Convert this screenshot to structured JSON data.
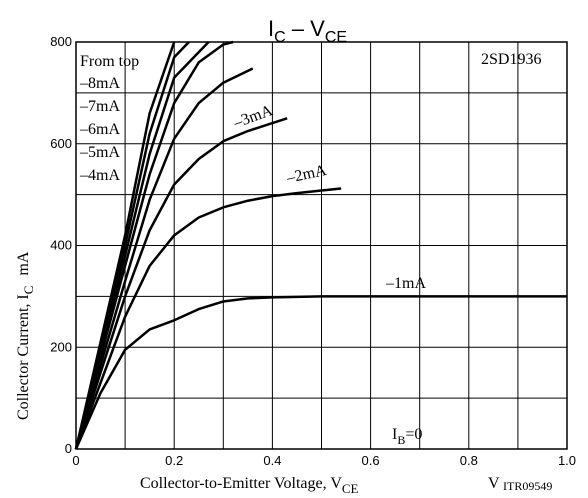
{
  "chart_data": {
    "type": "line",
    "title_parts": [
      "I",
      "C",
      " – V",
      "CE"
    ],
    "xlabel_parts": [
      "Collector-to-Emitter Voltage, V",
      "CE"
    ],
    "x_unit": "V",
    "code": "ITR09549",
    "ylabel_parts": [
      "Collector Current, I",
      "C",
      "mA"
    ],
    "device": "2SD1936",
    "legend_note": "From top",
    "zero_label_parts": [
      "I",
      "B",
      "=0"
    ],
    "xlim": [
      0,
      1
    ],
    "ylim": [
      0,
      800
    ],
    "xticks": [
      0,
      0.2,
      0.4,
      0.6,
      0.8,
      {
        "value": 1,
        "label": "1.0"
      }
    ],
    "xminor": [
      0.1,
      0.3,
      0.5,
      0.7,
      0.9
    ],
    "yticks": [
      0,
      200,
      400,
      600,
      800
    ],
    "yminor": [
      100,
      300,
      500,
      700
    ],
    "grid": true,
    "color": "#000000",
    "series": [
      {
        "name": "–1mA",
        "x": [
          0,
          0.05,
          0.1,
          0.15,
          0.2,
          0.25,
          0.3,
          0.35,
          0.4,
          0.5,
          0.6,
          0.7,
          0.8,
          0.9,
          1.0
        ],
        "values": [
          0,
          110,
          195,
          235,
          253,
          275,
          290,
          296,
          298,
          300,
          300,
          300,
          300,
          300,
          300
        ]
      },
      {
        "name": "–2mA",
        "x": [
          0,
          0.05,
          0.1,
          0.15,
          0.2,
          0.25,
          0.3,
          0.35,
          0.4,
          0.45,
          0.5,
          0.54
        ],
        "values": [
          0,
          130,
          260,
          360,
          420,
          455,
          475,
          488,
          497,
          503,
          508,
          512
        ]
      },
      {
        "name": "–3mA",
        "x": [
          0,
          0.05,
          0.1,
          0.15,
          0.2,
          0.25,
          0.3,
          0.35,
          0.43
        ],
        "values": [
          0,
          150,
          300,
          430,
          520,
          570,
          605,
          625,
          650
        ]
      },
      {
        "name": "–4mA",
        "x": [
          0,
          0.05,
          0.1,
          0.15,
          0.2,
          0.25,
          0.3,
          0.36
        ],
        "values": [
          0,
          165,
          330,
          490,
          610,
          680,
          720,
          748
        ]
      },
      {
        "name": "–5mA",
        "x": [
          0,
          0.05,
          0.1,
          0.15,
          0.2,
          0.25,
          0.3,
          0.32
        ],
        "values": [
          0,
          180,
          360,
          540,
          680,
          760,
          795,
          800
        ]
      },
      {
        "name": "–6mA",
        "x": [
          0,
          0.05,
          0.1,
          0.15,
          0.2,
          0.27
        ],
        "values": [
          0,
          190,
          380,
          580,
          730,
          800
        ]
      },
      {
        "name": "–7mA",
        "x": [
          0,
          0.05,
          0.1,
          0.15,
          0.2,
          0.23
        ],
        "values": [
          0,
          200,
          400,
          620,
          770,
          800
        ]
      },
      {
        "name": "–8mA",
        "x": [
          0,
          0.05,
          0.1,
          0.15,
          0.2
        ],
        "values": [
          0,
          210,
          420,
          660,
          800
        ]
      }
    ]
  }
}
